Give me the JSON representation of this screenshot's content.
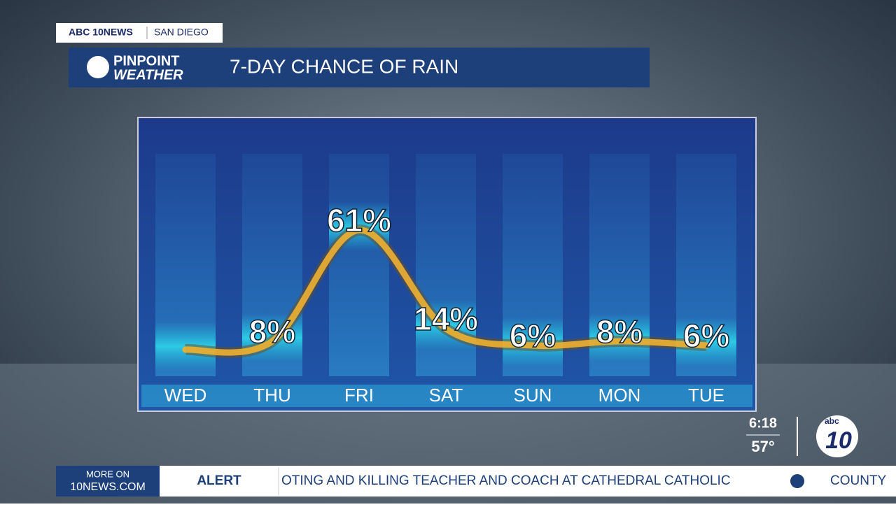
{
  "header": {
    "station": "ABC 10NEWS",
    "city": "SAN DIEGO",
    "brand_top": "PINPOINT",
    "brand_bottom": "WEATHER"
  },
  "chart_data": {
    "type": "line",
    "title": "7-DAY CHANCE OF RAIN",
    "categories": [
      "WED",
      "THU",
      "FRI",
      "SAT",
      "SUN",
      "MON",
      "TUE"
    ],
    "values": [
      4,
      8,
      61,
      14,
      6,
      8,
      6
    ],
    "value_labels": [
      null,
      "8%",
      "61%",
      "14%",
      "6%",
      "8%",
      "6%"
    ],
    "color": "#f0b030"
  },
  "bug": {
    "time": "6:18",
    "temp": "57°",
    "logo_small": "abc",
    "logo_big": "10"
  },
  "ticker": {
    "more_top": "MORE ON",
    "more_bottom": "10NEWS.COM",
    "alert": "ALERT",
    "text": "OTING AND KILLING TEACHER AND COACH  AT CATHEDRAL CATHOLIC",
    "next": "COUNTY"
  }
}
